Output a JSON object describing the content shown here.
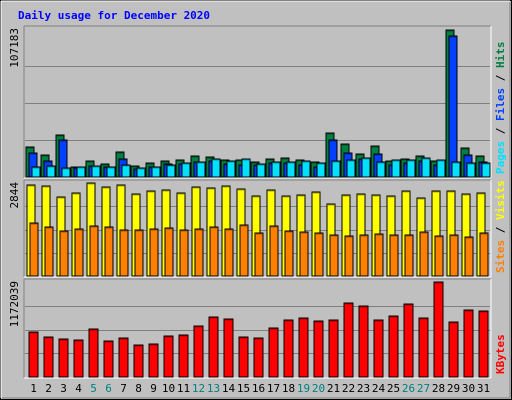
{
  "chart_data": [
    {
      "type": "bar",
      "title": "Daily usage for December 2020",
      "categories": [
        "1",
        "2",
        "3",
        "4",
        "5",
        "6",
        "7",
        "8",
        "9",
        "10",
        "11",
        "12",
        "13",
        "14",
        "15",
        "16",
        "17",
        "18",
        "19",
        "20",
        "21",
        "22",
        "23",
        "24",
        "25",
        "26",
        "27",
        "28",
        "29",
        "30",
        "31"
      ],
      "weekend_days": [
        "5",
        "6",
        "12",
        "13",
        "19",
        "20",
        "26",
        "27"
      ],
      "ylim": [
        0,
        107183
      ],
      "y_tick_label": "107183",
      "right_labels": [
        "Pages",
        "Files",
        "Hits"
      ],
      "series": [
        {
          "name": "Hits",
          "values": [
            21500,
            15800,
            30500,
            7600,
            11500,
            9200,
            17900,
            8200,
            10200,
            11300,
            12200,
            15100,
            14600,
            12100,
            12600,
            10800,
            13000,
            14100,
            12500,
            10800,
            32100,
            23900,
            16900,
            22100,
            11800,
            13100,
            15200,
            11400,
            106500,
            21000,
            15500
          ]
        },
        {
          "name": "Files",
          "values": [
            17500,
            11500,
            26500,
            6300,
            8000,
            7000,
            13000,
            6100,
            7400,
            9300,
            9400,
            11200,
            11300,
            9300,
            9000,
            8600,
            9800,
            10200,
            8600,
            7600,
            26500,
            17600,
            13000,
            16800,
            8700,
            10000,
            11900,
            8800,
            102000,
            16200,
            11100
          ]
        },
        {
          "name": "Pages",
          "values": [
            7400,
            7700,
            6800,
            7600,
            8300,
            6900,
            8900,
            6300,
            7300,
            9000,
            9800,
            10800,
            12700,
            11300,
            12900,
            9600,
            11100,
            10900,
            11300,
            10100,
            11500,
            12400,
            13700,
            11100,
            12100,
            12300,
            13800,
            12400,
            10600,
            10200,
            10400
          ]
        }
      ]
    },
    {
      "type": "bar",
      "categories": [
        "1",
        "2",
        "3",
        "4",
        "5",
        "6",
        "7",
        "8",
        "9",
        "10",
        "11",
        "12",
        "13",
        "14",
        "15",
        "16",
        "17",
        "18",
        "19",
        "20",
        "21",
        "22",
        "23",
        "24",
        "25",
        "26",
        "27",
        "28",
        "29",
        "30",
        "31"
      ],
      "ylim": [
        0,
        2844
      ],
      "y_tick_label": "2844",
      "right_labels": [
        "Sites",
        "Visits"
      ],
      "series": [
        {
          "name": "Visits",
          "values": [
            2783,
            2751,
            2407,
            2525,
            2844,
            2728,
            2775,
            2501,
            2594,
            2643,
            2539,
            2710,
            2686,
            2765,
            2667,
            2433,
            2636,
            2454,
            2477,
            2572,
            2205,
            2481,
            2496,
            2465,
            2448,
            2599,
            2400,
            2602,
            2601,
            2520,
            2538
          ]
        },
        {
          "name": "Sites",
          "values": [
            1622,
            1509,
            1379,
            1440,
            1542,
            1487,
            1420,
            1413,
            1444,
            1469,
            1421,
            1422,
            1488,
            1434,
            1560,
            1324,
            1525,
            1367,
            1345,
            1315,
            1254,
            1232,
            1264,
            1298,
            1240,
            1256,
            1353,
            1229,
            1255,
            1189,
            1320
          ]
        }
      ]
    },
    {
      "type": "bar",
      "categories": [
        "1",
        "2",
        "3",
        "4",
        "5",
        "6",
        "7",
        "8",
        "9",
        "10",
        "11",
        "12",
        "13",
        "14",
        "15",
        "16",
        "17",
        "18",
        "19",
        "20",
        "21",
        "22",
        "23",
        "24",
        "25",
        "26",
        "27",
        "28",
        "29",
        "30",
        "31"
      ],
      "ylim": [
        0,
        1172039
      ],
      "y_tick_label": "1172039",
      "right_labels": [
        "KBytes"
      ],
      "series": [
        {
          "name": "KBytes",
          "values": [
            560000,
            490000,
            470000,
            455000,
            590000,
            450000,
            485000,
            390000,
            405000,
            510000,
            520000,
            635000,
            735000,
            717000,
            495000,
            480000,
            610000,
            700000,
            726000,
            693000,
            698000,
            907000,
            873000,
            699000,
            752000,
            896000,
            728000,
            1172039,
            682000,
            825000,
            813000
          ]
        }
      ]
    }
  ],
  "colors": {
    "hits": "#008040",
    "files": "#0040ff",
    "pages": "#00e0ff",
    "visits": "#ffff00",
    "sites": "#ff8000",
    "kbytes": "#ff0000",
    "title": "#0000ff",
    "weekend_label": "#008080",
    "weekday_label": "#000000",
    "panel_bg": "#c0c0c0"
  }
}
